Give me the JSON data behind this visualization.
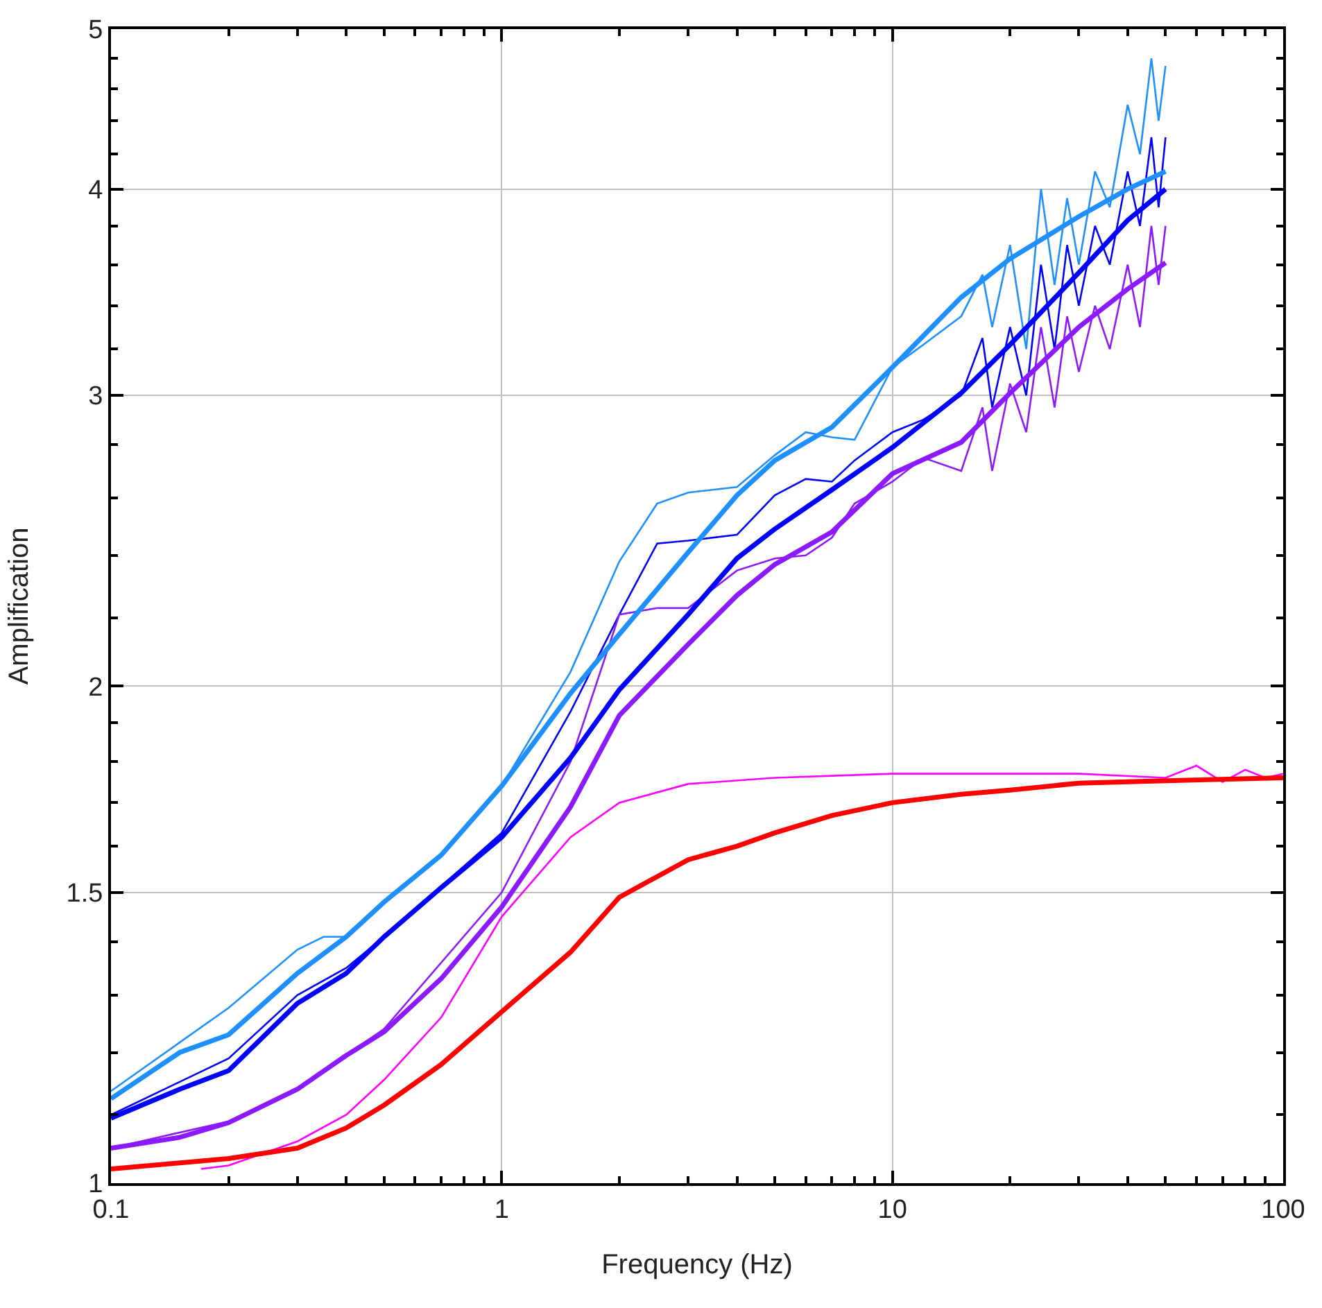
{
  "chart_data": {
    "type": "line",
    "xlabel": "Frequency (Hz)",
    "ylabel": "Amplification",
    "log": "xy",
    "grid": true,
    "marker": "none",
    "line_style": "solid",
    "xlim": [
      0.1,
      100
    ],
    "xticks": [
      0.1,
      1,
      10,
      100,
      {
        "value": 0.2,
        "label": null
      },
      {
        "value": 0.3,
        "label": null
      },
      {
        "value": 0.4,
        "label": null
      },
      {
        "value": 0.5,
        "label": null
      },
      {
        "value": 0.6,
        "label": null
      },
      {
        "value": 0.7,
        "label": null
      },
      {
        "value": 0.8,
        "label": null
      },
      {
        "value": 0.9,
        "label": null
      },
      {
        "value": 2,
        "label": null
      },
      {
        "value": 3,
        "label": null
      },
      {
        "value": 4,
        "label": null
      },
      {
        "value": 5,
        "label": null
      },
      {
        "value": 6,
        "label": null
      },
      {
        "value": 7,
        "label": null
      },
      {
        "value": 8,
        "label": null
      },
      {
        "value": 9,
        "label": null
      },
      {
        "value": 20,
        "label": null
      },
      {
        "value": 30,
        "label": null
      },
      {
        "value": 40,
        "label": null
      },
      {
        "value": 50,
        "label": null
      },
      {
        "value": 60,
        "label": null
      },
      {
        "value": 70,
        "label": null
      },
      {
        "value": 80,
        "label": null
      },
      {
        "value": 90,
        "label": null
      }
    ],
    "ylim": [
      1,
      5
    ],
    "yticks": [
      1,
      1.5,
      2,
      3,
      4,
      5,
      {
        "value": 1.1,
        "label": null
      },
      {
        "value": 1.2,
        "label": null
      },
      {
        "value": 1.3,
        "label": null
      },
      {
        "value": 1.4,
        "label": null
      },
      {
        "value": 1.6,
        "label": null
      },
      {
        "value": 1.7,
        "label": null
      },
      {
        "value": 1.8,
        "label": null
      },
      {
        "value": 1.9,
        "label": null
      },
      {
        "value": 2.2,
        "label": null
      },
      {
        "value": 2.4,
        "label": null
      },
      {
        "value": 2.6,
        "label": null
      },
      {
        "value": 2.8,
        "label": null
      },
      {
        "value": 3.2,
        "label": null
      },
      {
        "value": 3.4,
        "label": null
      },
      {
        "value": 3.6,
        "label": null
      },
      {
        "value": 3.8,
        "label": null
      },
      {
        "value": 4.2,
        "label": null
      },
      {
        "value": 4.4,
        "label": null
      },
      {
        "value": 4.6,
        "label": null
      },
      {
        "value": 4.8,
        "label": null
      }
    ],
    "series": [
      {
        "color": "#1e8fff",
        "x": [
          0.1,
          0.2,
          0.3,
          0.35,
          0.4,
          0.5,
          0.7,
          1,
          1.5,
          2,
          2.5,
          3,
          4,
          5,
          6,
          7,
          8,
          10,
          12,
          15,
          17,
          18,
          20,
          22,
          24,
          26,
          28,
          30,
          33,
          36,
          40,
          43,
          46,
          48,
          50
        ],
        "values": [
          1.137,
          1.277,
          1.385,
          1.41,
          1.41,
          1.48,
          1.58,
          1.74,
          2.04,
          2.38,
          2.58,
          2.62,
          2.64,
          2.76,
          2.85,
          2.83,
          2.82,
          3.12,
          3.22,
          3.35,
          3.55,
          3.3,
          3.7,
          3.2,
          4.0,
          3.5,
          3.95,
          3.6,
          4.1,
          3.9,
          4.5,
          4.2,
          4.8,
          4.4,
          4.75
        ]
      },
      {
        "color": "#0000ff",
        "x": [
          0.1,
          0.2,
          0.3,
          0.4,
          0.5,
          1,
          1.5,
          2,
          2.5,
          3,
          4,
          5,
          6,
          7,
          8,
          10,
          12,
          15,
          17,
          18,
          20,
          22,
          24,
          26,
          28,
          30,
          33,
          36,
          40,
          43,
          46,
          48,
          50
        ],
        "values": [
          1.1,
          1.19,
          1.3,
          1.35,
          1.41,
          1.63,
          1.93,
          2.21,
          2.44,
          2.45,
          2.47,
          2.61,
          2.67,
          2.66,
          2.74,
          2.85,
          2.9,
          3.0,
          3.25,
          2.95,
          3.3,
          3.0,
          3.6,
          3.2,
          3.7,
          3.4,
          3.8,
          3.6,
          4.1,
          3.8,
          4.3,
          3.9,
          4.3
        ]
      },
      {
        "color": "#8c1aff",
        "x": [
          0.1,
          0.2,
          0.3,
          0.4,
          0.5,
          1,
          1.5,
          2,
          2.5,
          3,
          4,
          5,
          6,
          7,
          8,
          10,
          12,
          15,
          17,
          18,
          20,
          22,
          24,
          26,
          28,
          30,
          33,
          36,
          40,
          43,
          46,
          48,
          50
        ],
        "values": [
          1.05,
          1.09,
          1.14,
          1.195,
          1.24,
          1.5,
          1.8,
          2.21,
          2.23,
          2.23,
          2.35,
          2.39,
          2.4,
          2.46,
          2.58,
          2.66,
          2.75,
          2.7,
          2.95,
          2.7,
          3.05,
          2.85,
          3.3,
          2.95,
          3.35,
          3.1,
          3.4,
          3.2,
          3.6,
          3.3,
          3.8,
          3.5,
          3.8
        ]
      },
      {
        "color": "#ff00ff",
        "x": [
          0.17,
          0.2,
          0.3,
          0.4,
          0.5,
          0.7,
          1,
          1.5,
          2,
          3,
          5,
          10,
          30,
          50,
          60,
          70,
          80,
          90,
          100
        ],
        "values": [
          1.02,
          1.025,
          1.06,
          1.1,
          1.155,
          1.26,
          1.45,
          1.62,
          1.7,
          1.745,
          1.76,
          1.77,
          1.77,
          1.76,
          1.79,
          1.75,
          1.78,
          1.76,
          1.77
        ]
      },
      {
        "color": "#1e8fff",
        "x": [
          0.1,
          0.15,
          0.2,
          0.3,
          0.4,
          0.5,
          0.7,
          1,
          1.5,
          2,
          3,
          4,
          5,
          7,
          10,
          15,
          20,
          30,
          40,
          50
        ],
        "values": [
          1.125,
          1.2,
          1.23,
          1.34,
          1.41,
          1.48,
          1.58,
          1.74,
          1.98,
          2.15,
          2.41,
          2.61,
          2.74,
          2.87,
          3.12,
          3.44,
          3.63,
          3.85,
          4.0,
          4.1
        ]
      },
      {
        "color": "#0000ff",
        "x": [
          0.1,
          0.15,
          0.2,
          0.3,
          0.4,
          0.5,
          0.7,
          1,
          1.5,
          2,
          3,
          4,
          5,
          7,
          10,
          15,
          20,
          30,
          40,
          50
        ],
        "values": [
          1.095,
          1.14,
          1.17,
          1.285,
          1.34,
          1.41,
          1.51,
          1.62,
          1.81,
          1.99,
          2.21,
          2.39,
          2.49,
          2.63,
          2.79,
          3.01,
          3.22,
          3.56,
          3.83,
          4.0
        ]
      },
      {
        "color": "#8c1aff",
        "x": [
          0.1,
          0.15,
          0.2,
          0.3,
          0.4,
          0.5,
          0.7,
          1,
          1.5,
          2,
          3,
          4,
          5,
          7,
          10,
          15,
          20,
          30,
          40,
          50
        ],
        "values": [
          1.05,
          1.066,
          1.088,
          1.14,
          1.195,
          1.235,
          1.33,
          1.47,
          1.69,
          1.92,
          2.12,
          2.27,
          2.37,
          2.48,
          2.69,
          2.81,
          3.01,
          3.3,
          3.48,
          3.61
        ]
      },
      {
        "color": "#ff0000",
        "x": [
          0.1,
          0.2,
          0.3,
          0.4,
          0.5,
          0.7,
          1,
          1.5,
          2,
          3,
          4,
          5,
          7,
          10,
          15,
          20,
          30,
          50,
          100
        ],
        "values": [
          1.02,
          1.035,
          1.05,
          1.08,
          1.115,
          1.18,
          1.27,
          1.38,
          1.49,
          1.57,
          1.6,
          1.63,
          1.67,
          1.7,
          1.72,
          1.73,
          1.747,
          1.753,
          1.76
        ]
      }
    ]
  }
}
